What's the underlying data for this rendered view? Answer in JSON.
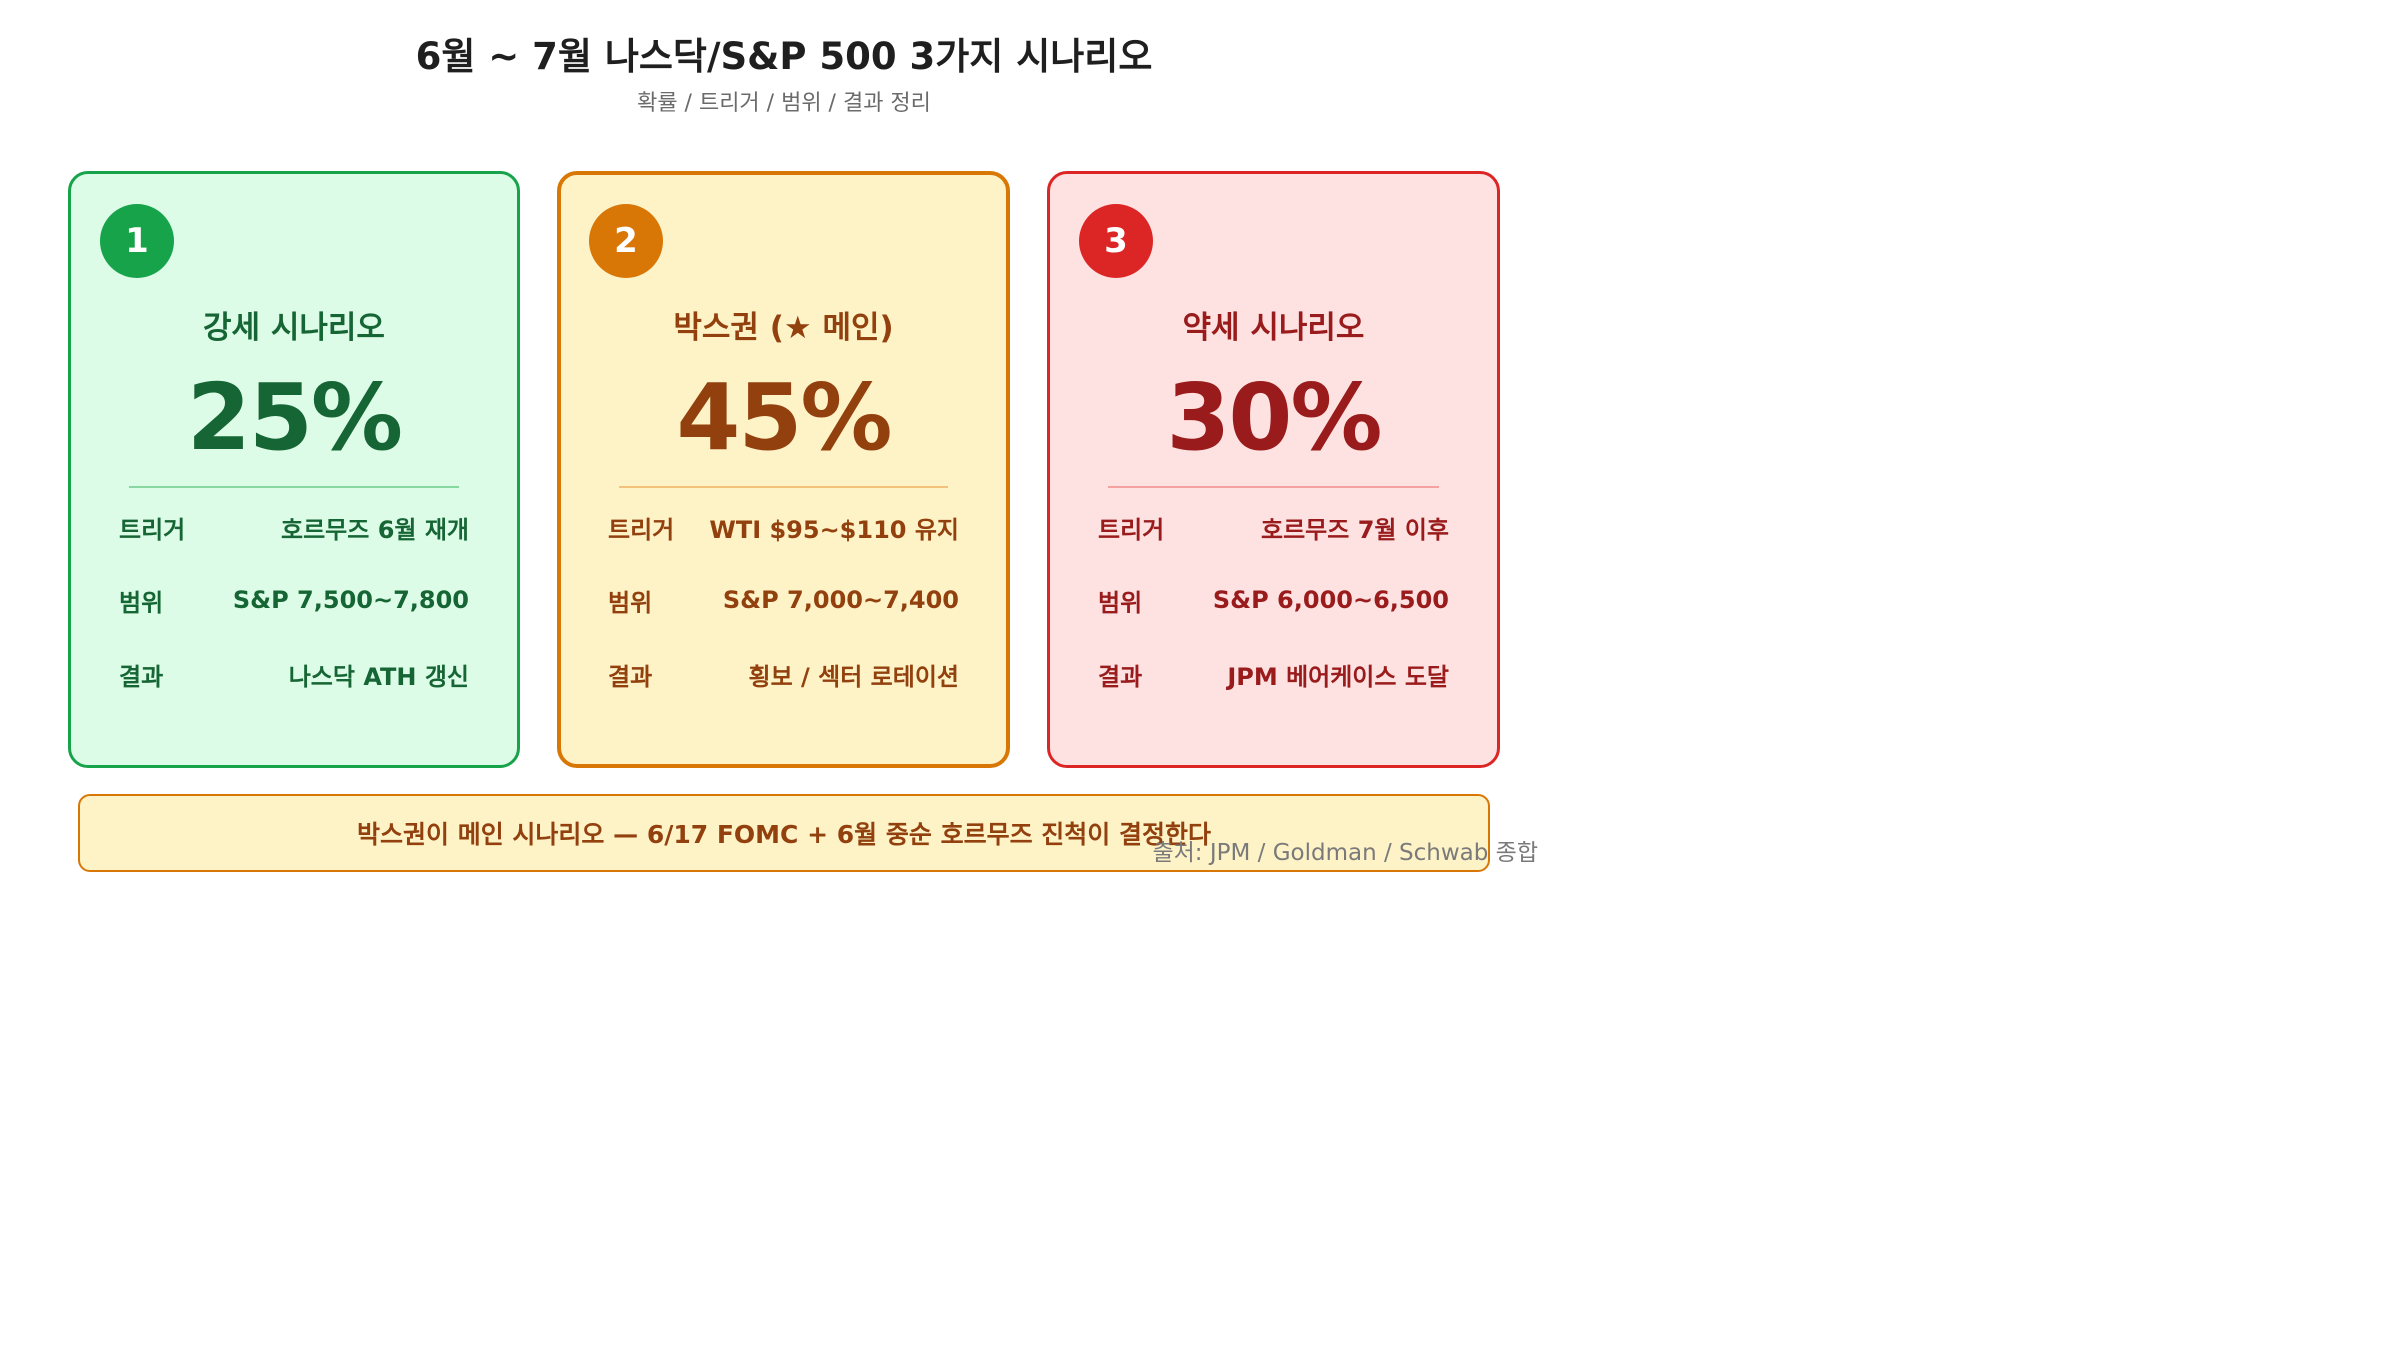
{
  "header": {
    "title": "6월 ~ 7월 나스닥/S&P 500 3가지 시나리오",
    "subtitle": "확률 / 트리거 / 범위 / 결과 정리"
  },
  "colors": {
    "bull_accent": "#16a34a",
    "base_accent": "#d97706",
    "bear_accent": "#dc2626"
  },
  "cards": [
    {
      "number": "1",
      "name": "강세 시나리오",
      "probability": "25%",
      "rows": [
        {
          "label": "트리거",
          "value": "호르무즈 6월 재개"
        },
        {
          "label": "범위",
          "value": "S&P 7,500~7,800"
        },
        {
          "label": "결과",
          "value": "나스닥 ATH 갱신"
        }
      ]
    },
    {
      "number": "2",
      "name": "박스권 (★ 메인)",
      "probability": "45%",
      "rows": [
        {
          "label": "트리거",
          "value": "WTI $95~$110 유지"
        },
        {
          "label": "범위",
          "value": "S&P 7,000~7,400"
        },
        {
          "label": "결과",
          "value": "횡보 / 섹터 로테이션"
        }
      ]
    },
    {
      "number": "3",
      "name": "약세 시나리오",
      "probability": "30%",
      "rows": [
        {
          "label": "트리거",
          "value": "호르무즈 7월 이후"
        },
        {
          "label": "범위",
          "value": "S&P 6,000~6,500"
        },
        {
          "label": "결과",
          "value": "JPM 베어케이스 도달"
        }
      ]
    }
  ],
  "banner": {
    "text": "박스권이 메인 시나리오 — 6/17 FOMC + 6월 중순 호르무즈 진척이 결정한다"
  },
  "source": {
    "text": "출처: JPM / Goldman / Schwab 종합"
  }
}
